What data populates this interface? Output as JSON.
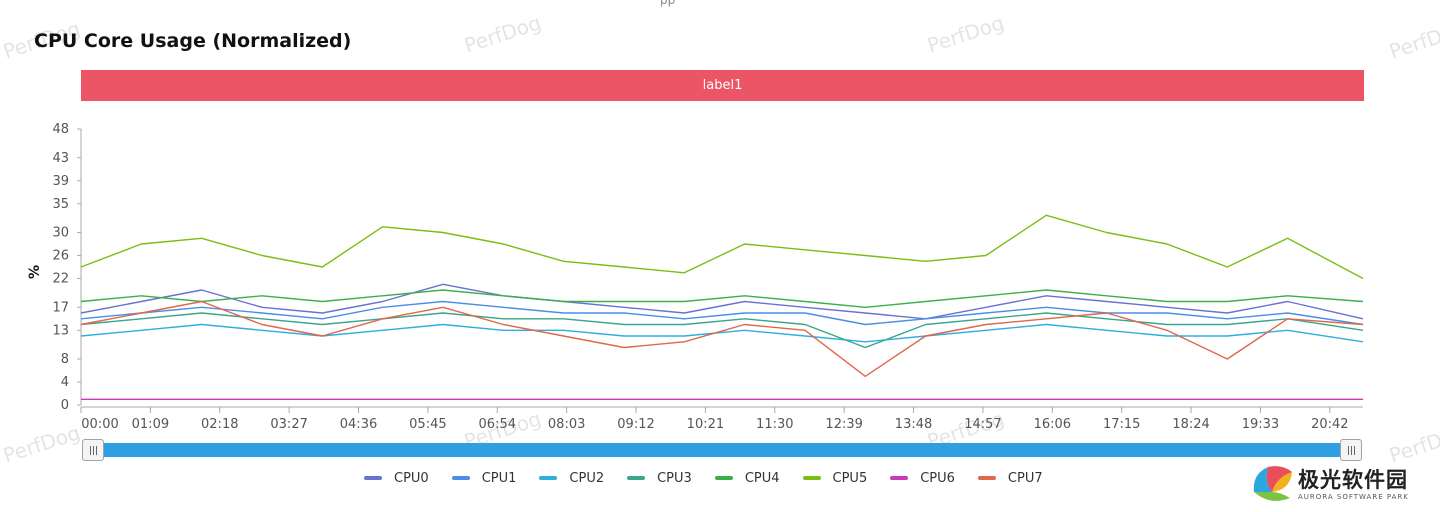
{
  "title": "CPU Core Usage (Normalized)",
  "top_mark": "pp",
  "watermark": "PerfDog",
  "label_band": "label1",
  "colors": {
    "label_band": "#eb5565",
    "slider": "#2f9fe3"
  },
  "chart_data": {
    "type": "line",
    "ylabel": "%",
    "y_ticks": [
      0,
      4,
      8,
      13,
      17,
      22,
      26,
      30,
      35,
      39,
      43,
      48
    ],
    "ylim": [
      0,
      48
    ],
    "x_ticks": [
      "00:00",
      "01:09",
      "02:18",
      "03:27",
      "04:36",
      "05:45",
      "06:54",
      "08:03",
      "09:12",
      "10:21",
      "11:30",
      "12:39",
      "13:48",
      "14:57",
      "16:06",
      "17:15",
      "18:24",
      "19:33",
      "20:42"
    ],
    "x_range_seconds": [
      0,
      1275
    ],
    "legend_position": "bottom",
    "grid": false,
    "series": [
      {
        "name": "CPU0",
        "color": "#6673d1",
        "x": [
          0,
          60,
          120,
          180,
          240,
          300,
          360,
          420,
          480,
          540,
          600,
          660,
          720,
          780,
          840,
          900,
          960,
          1020,
          1080,
          1140,
          1200,
          1275
        ],
        "values": [
          16,
          18,
          20,
          17,
          16,
          18,
          21,
          19,
          18,
          17,
          16,
          18,
          17,
          16,
          15,
          17,
          19,
          18,
          17,
          16,
          18,
          15
        ]
      },
      {
        "name": "CPU1",
        "color": "#4a8ee8",
        "x": [
          0,
          60,
          120,
          180,
          240,
          300,
          360,
          420,
          480,
          540,
          600,
          660,
          720,
          780,
          840,
          900,
          960,
          1020,
          1080,
          1140,
          1200,
          1275
        ],
        "values": [
          15,
          16,
          17,
          16,
          15,
          17,
          18,
          17,
          16,
          16,
          15,
          16,
          16,
          14,
          15,
          16,
          17,
          16,
          16,
          15,
          16,
          14
        ]
      },
      {
        "name": "CPU2",
        "color": "#2eaee0",
        "x": [
          0,
          60,
          120,
          180,
          240,
          300,
          360,
          420,
          480,
          540,
          600,
          660,
          720,
          780,
          840,
          900,
          960,
          1020,
          1080,
          1140,
          1200,
          1275
        ],
        "values": [
          12,
          13,
          14,
          13,
          12,
          13,
          14,
          13,
          13,
          12,
          12,
          13,
          12,
          11,
          12,
          13,
          14,
          13,
          12,
          12,
          13,
          11
        ]
      },
      {
        "name": "CPU3",
        "color": "#3aa58c",
        "x": [
          0,
          60,
          120,
          180,
          240,
          300,
          360,
          420,
          480,
          540,
          600,
          660,
          720,
          780,
          840,
          900,
          960,
          1020,
          1080,
          1140,
          1200,
          1275
        ],
        "values": [
          14,
          15,
          16,
          15,
          14,
          15,
          16,
          15,
          15,
          14,
          14,
          15,
          14,
          10,
          14,
          15,
          16,
          15,
          14,
          14,
          15,
          13
        ]
      },
      {
        "name": "CPU4",
        "color": "#3bb04a",
        "x": [
          0,
          60,
          120,
          180,
          240,
          300,
          360,
          420,
          480,
          540,
          600,
          660,
          720,
          780,
          840,
          900,
          960,
          1020,
          1080,
          1140,
          1200,
          1275
        ],
        "values": [
          18,
          19,
          18,
          19,
          18,
          19,
          20,
          19,
          18,
          18,
          18,
          19,
          18,
          17,
          18,
          19,
          20,
          19,
          18,
          18,
          19,
          18
        ]
      },
      {
        "name": "CPU5",
        "color": "#7bbe13",
        "x": [
          0,
          60,
          120,
          180,
          240,
          300,
          360,
          420,
          480,
          540,
          600,
          660,
          720,
          780,
          840,
          900,
          960,
          1020,
          1080,
          1140,
          1200,
          1275
        ],
        "values": [
          24,
          28,
          29,
          26,
          24,
          31,
          30,
          28,
          25,
          24,
          23,
          28,
          27,
          26,
          25,
          26,
          33,
          30,
          28,
          24,
          29,
          22
        ]
      },
      {
        "name": "CPU6",
        "color": "#c93ab5",
        "x": [
          0,
          60,
          120,
          180,
          240,
          300,
          360,
          420,
          480,
          540,
          600,
          660,
          720,
          780,
          840,
          900,
          960,
          1020,
          1080,
          1140,
          1200,
          1275
        ],
        "values": [
          1,
          1,
          1,
          1,
          1,
          1,
          1,
          1,
          1,
          1,
          1,
          1,
          1,
          1,
          1,
          1,
          1,
          1,
          1,
          1,
          1,
          1
        ]
      },
      {
        "name": "CPU7",
        "color": "#e0674a",
        "x": [
          0,
          60,
          120,
          180,
          240,
          300,
          360,
          420,
          480,
          540,
          600,
          660,
          720,
          780,
          840,
          900,
          960,
          1020,
          1080,
          1140,
          1200,
          1275
        ],
        "values": [
          14,
          16,
          18,
          14,
          12,
          15,
          17,
          14,
          12,
          10,
          11,
          14,
          13,
          5,
          12,
          14,
          15,
          16,
          13,
          8,
          15,
          14
        ]
      }
    ]
  },
  "slider": {
    "start_percent": 0,
    "end_percent": 100
  },
  "legend_items": [
    "CPU0",
    "CPU1",
    "CPU2",
    "CPU3",
    "CPU4",
    "CPU5",
    "CPU6",
    "CPU7"
  ],
  "logo": {
    "text_cn": "极光软件园",
    "text_en": "AURORA SOFTWARE PARK",
    "icon": "aurora-logo-icon"
  }
}
